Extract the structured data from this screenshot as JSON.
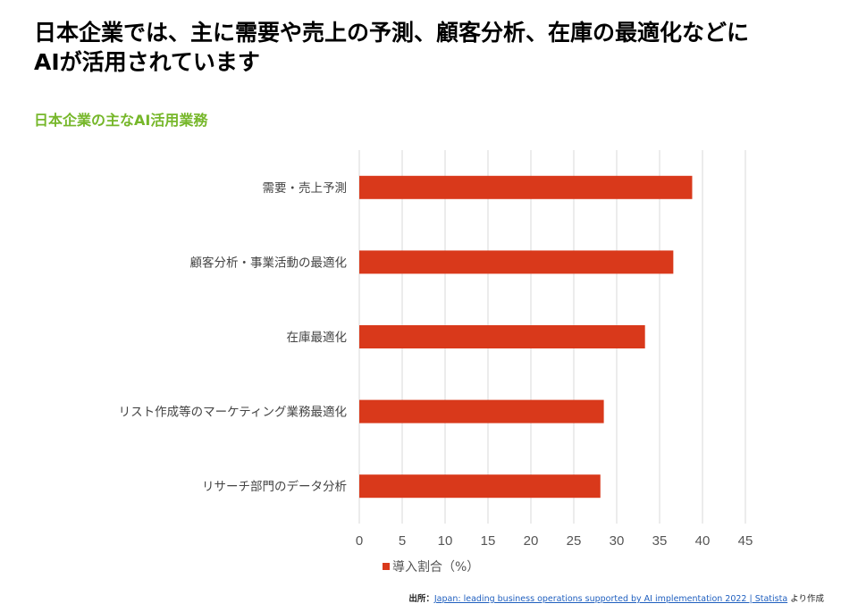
{
  "headline": {
    "line1": "日本企業では、主に需要や売上の予測、顧客分析、在庫の最適化などに",
    "line2": "AIが活用されています"
  },
  "chart_data": {
    "type": "bar",
    "orientation": "horizontal",
    "title": "日本企業の主なAI活用業務",
    "categories": [
      "需要・売上予測",
      "顧客分析・事業活動の最適化",
      "在庫最適化",
      "リスト作成等のマーケティング業務最適化",
      "リサーチ部門のデータ分析"
    ],
    "series": [
      {
        "name": "導入割合（%）",
        "color": "#d9391b",
        "values": [
          38.8,
          36.6,
          33.3,
          28.5,
          28.1
        ]
      }
    ],
    "xlim": [
      0,
      45
    ],
    "xticks": [
      "0",
      "5",
      "10",
      "15",
      "20",
      "25",
      "30",
      "35",
      "40",
      "45"
    ],
    "grid": "vertical",
    "legend": "bottom"
  },
  "source": {
    "prefix": "出所：",
    "link_text": "Japan: leading business operations supported by AI implementation 2022 | Statista",
    "suffix": "より作成"
  }
}
